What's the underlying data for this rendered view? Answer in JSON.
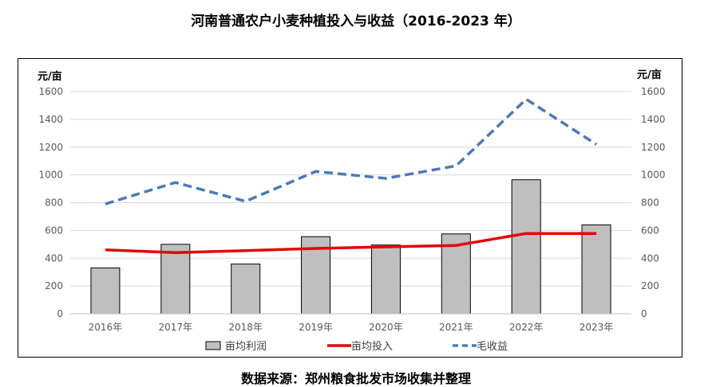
{
  "title": "河南普通农户小麦种植投入与收益（2016-2023 年）",
  "source": "数据来源：郑州粮食批发市场收集并整理",
  "chart_data": {
    "type": "bar",
    "categories": [
      "2016年",
      "2017年",
      "2018年",
      "2019年",
      "2020年",
      "2021年",
      "2022年",
      "2023年"
    ],
    "ylabel_left": "元/亩",
    "ylabel_right": "元/亩",
    "ylim": [
      0,
      1600
    ],
    "yticks": [
      "0",
      "200",
      "400",
      "600",
      "800",
      "1000",
      "1200",
      "1400",
      "1600"
    ],
    "grid": true,
    "legend_position": "bottom",
    "series": [
      {
        "name": "亩均利润",
        "kind": "bar",
        "color": "#bfbfbf",
        "values": [
          330,
          500,
          358,
          555,
          495,
          575,
          965,
          640
        ]
      },
      {
        "name": "亩均投入",
        "kind": "line",
        "color": "#e60000",
        "values": [
          460,
          440,
          455,
          470,
          482,
          492,
          578,
          578
        ]
      },
      {
        "name": "毛收益",
        "kind": "dashed-line",
        "color": "#4a7ab8",
        "values": [
          790,
          945,
          810,
          1025,
          975,
          1065,
          1545,
          1220
        ]
      }
    ]
  }
}
